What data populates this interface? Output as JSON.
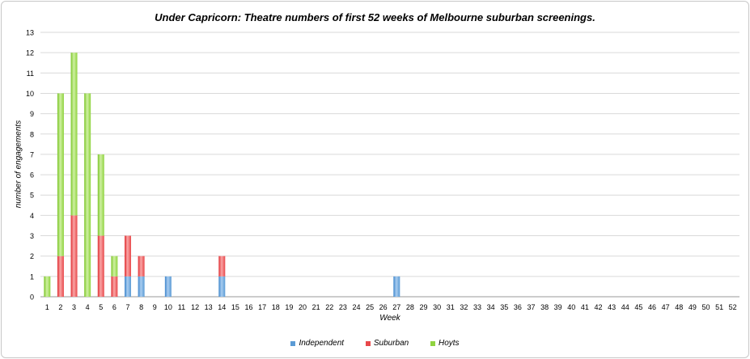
{
  "chart_data": {
    "type": "bar",
    "stacked": true,
    "title": "Under Capricorn: Theatre numbers of first 52 weeks of Melbourne suburban screenings.",
    "xlabel": "Week",
    "ylabel": "number of engagements",
    "ylim": [
      0,
      13
    ],
    "yticks": [
      0,
      1,
      2,
      3,
      4,
      5,
      6,
      7,
      8,
      9,
      10,
      11,
      12,
      13
    ],
    "grid": true,
    "legend_position": "bottom",
    "categories": [
      "1",
      "2",
      "3",
      "4",
      "5",
      "6",
      "7",
      "8",
      "9",
      "10",
      "11",
      "12",
      "13",
      "14",
      "15",
      "16",
      "17",
      "18",
      "19",
      "20",
      "21",
      "22",
      "23",
      "24",
      "25",
      "26",
      "27",
      "28",
      "29",
      "30",
      "31",
      "32",
      "33",
      "34",
      "35",
      "36",
      "37",
      "38",
      "39",
      "40",
      "41",
      "42",
      "43",
      "44",
      "45",
      "46",
      "47",
      "48",
      "49",
      "50",
      "51",
      "52"
    ],
    "series": [
      {
        "name": "Independent",
        "color": "#5b9bd5",
        "values": [
          0,
          0,
          0,
          0,
          0,
          0,
          1,
          1,
          0,
          1,
          0,
          0,
          0,
          1,
          0,
          0,
          0,
          0,
          0,
          0,
          0,
          0,
          0,
          0,
          0,
          0,
          1,
          0,
          0,
          0,
          0,
          0,
          0,
          0,
          0,
          0,
          0,
          0,
          0,
          0,
          0,
          0,
          0,
          0,
          0,
          0,
          0,
          0,
          0,
          0,
          0,
          0
        ]
      },
      {
        "name": "Suburban",
        "color": "#e8484a",
        "values": [
          0,
          2,
          4,
          0,
          3,
          1,
          2,
          1,
          0,
          0,
          0,
          0,
          0,
          1,
          0,
          0,
          0,
          0,
          0,
          0,
          0,
          0,
          0,
          0,
          0,
          0,
          0,
          0,
          0,
          0,
          0,
          0,
          0,
          0,
          0,
          0,
          0,
          0,
          0,
          0,
          0,
          0,
          0,
          0,
          0,
          0,
          0,
          0,
          0,
          0,
          0,
          0
        ]
      },
      {
        "name": "Hoyts",
        "color": "#8fd33f",
        "values": [
          1,
          8,
          8,
          10,
          4,
          1,
          0,
          0,
          0,
          0,
          0,
          0,
          0,
          0,
          0,
          0,
          0,
          0,
          0,
          0,
          0,
          0,
          0,
          0,
          0,
          0,
          0,
          0,
          0,
          0,
          0,
          0,
          0,
          0,
          0,
          0,
          0,
          0,
          0,
          0,
          0,
          0,
          0,
          0,
          0,
          0,
          0,
          0,
          0,
          0,
          0,
          0
        ]
      }
    ]
  }
}
